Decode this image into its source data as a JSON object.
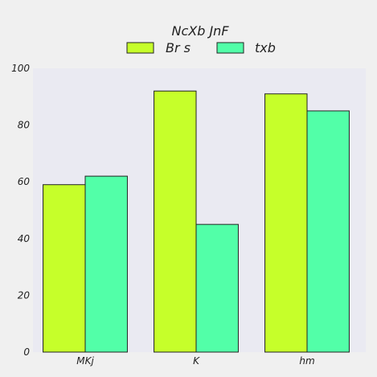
{
  "chart_data": {
    "type": "bar",
    "title": "NcXb JnF",
    "categories": [
      "MKj",
      "K",
      "hm"
    ],
    "series": [
      {
        "name": "Br s",
        "values": [
          59,
          92,
          91
        ],
        "color": "#c6ff2a"
      },
      {
        "name": "txb",
        "values": [
          62,
          45,
          85
        ],
        "color": "#52ffa8"
      }
    ],
    "ylim": [
      0,
      100
    ],
    "yticks": [
      0,
      20,
      40,
      60,
      80,
      100
    ],
    "xlabel": "",
    "ylabel": "",
    "grid": false,
    "legend_position": "top-center",
    "plot_background": "#eaeaf2",
    "page_background": "#f0f0f0"
  }
}
